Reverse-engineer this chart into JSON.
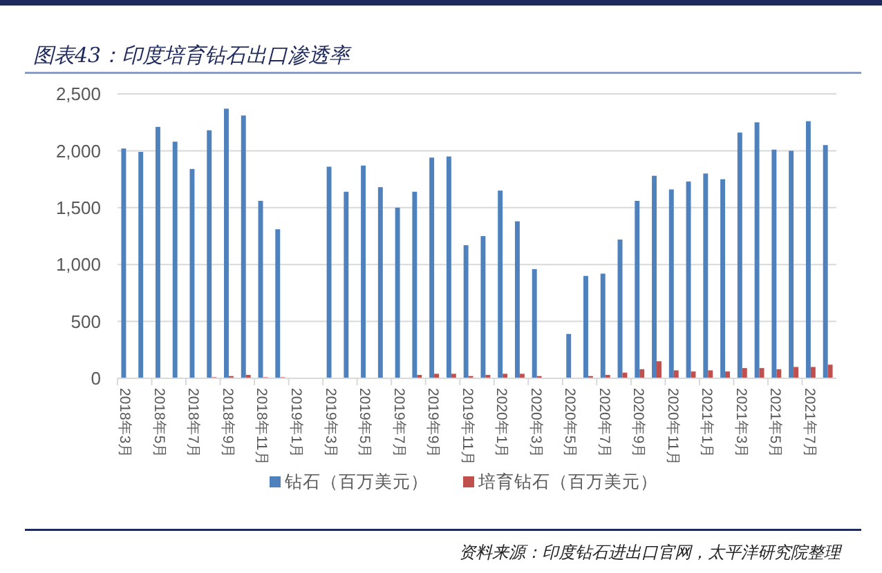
{
  "chart_data": {
    "type": "bar",
    "title": "图表43：印度培育钻石出口渗透率",
    "categories": [
      "2018年3月",
      null,
      "2018年5月",
      null,
      "2018年7月",
      null,
      "2018年9月",
      null,
      "2018年11月",
      null,
      "2019年1月",
      null,
      "2019年3月",
      null,
      "2019年5月",
      null,
      "2019年7月",
      null,
      "2019年9月",
      null,
      "2019年11月",
      null,
      "2020年1月",
      null,
      "2020年3月",
      null,
      "2020年5月",
      null,
      "2020年7月",
      null,
      "2020年9月",
      null,
      "2020年11月",
      null,
      "2021年1月",
      null,
      "2021年3月",
      null,
      "2021年5月",
      null,
      "2021年7月",
      null
    ],
    "series": [
      {
        "name": "钻石（百万美元）",
        "color": "#4f81bd",
        "values": [
          2020,
          1990,
          2210,
          2080,
          1840,
          2180,
          2370,
          2310,
          1560,
          1310,
          null,
          null,
          1860,
          1640,
          1870,
          1680,
          1500,
          1640,
          1940,
          1950,
          1170,
          1250,
          1650,
          1380,
          960,
          null,
          390,
          900,
          920,
          1220,
          1560,
          1780,
          1660,
          1730,
          1800,
          1750,
          2160,
          2250,
          2010,
          2000,
          2260,
          2050
        ]
      },
      {
        "name": "培育钻石（百万美元）",
        "color": "#c0504d",
        "values": [
          0,
          0,
          0,
          0,
          0,
          10,
          20,
          30,
          10,
          10,
          null,
          null,
          0,
          0,
          0,
          0,
          0,
          30,
          40,
          40,
          20,
          30,
          40,
          40,
          20,
          null,
          null,
          20,
          30,
          50,
          80,
          150,
          70,
          60,
          70,
          60,
          90,
          90,
          80,
          100,
          100,
          120
        ]
      }
    ],
    "ylim": [
      0,
      2500
    ],
    "yticks": [
      0,
      {
        "value": 500,
        "label": "500"
      },
      {
        "value": 1000,
        "label": "1,000"
      },
      {
        "value": 1500,
        "label": "1,500"
      },
      {
        "value": 2000,
        "label": "2,000"
      },
      {
        "value": 2500,
        "label": "2,500"
      }
    ],
    "grid": "y",
    "legend": "bottom",
    "annotations": [
      "资料来源：印度钻石进出口官网，太平洋研究院整理"
    ]
  }
}
